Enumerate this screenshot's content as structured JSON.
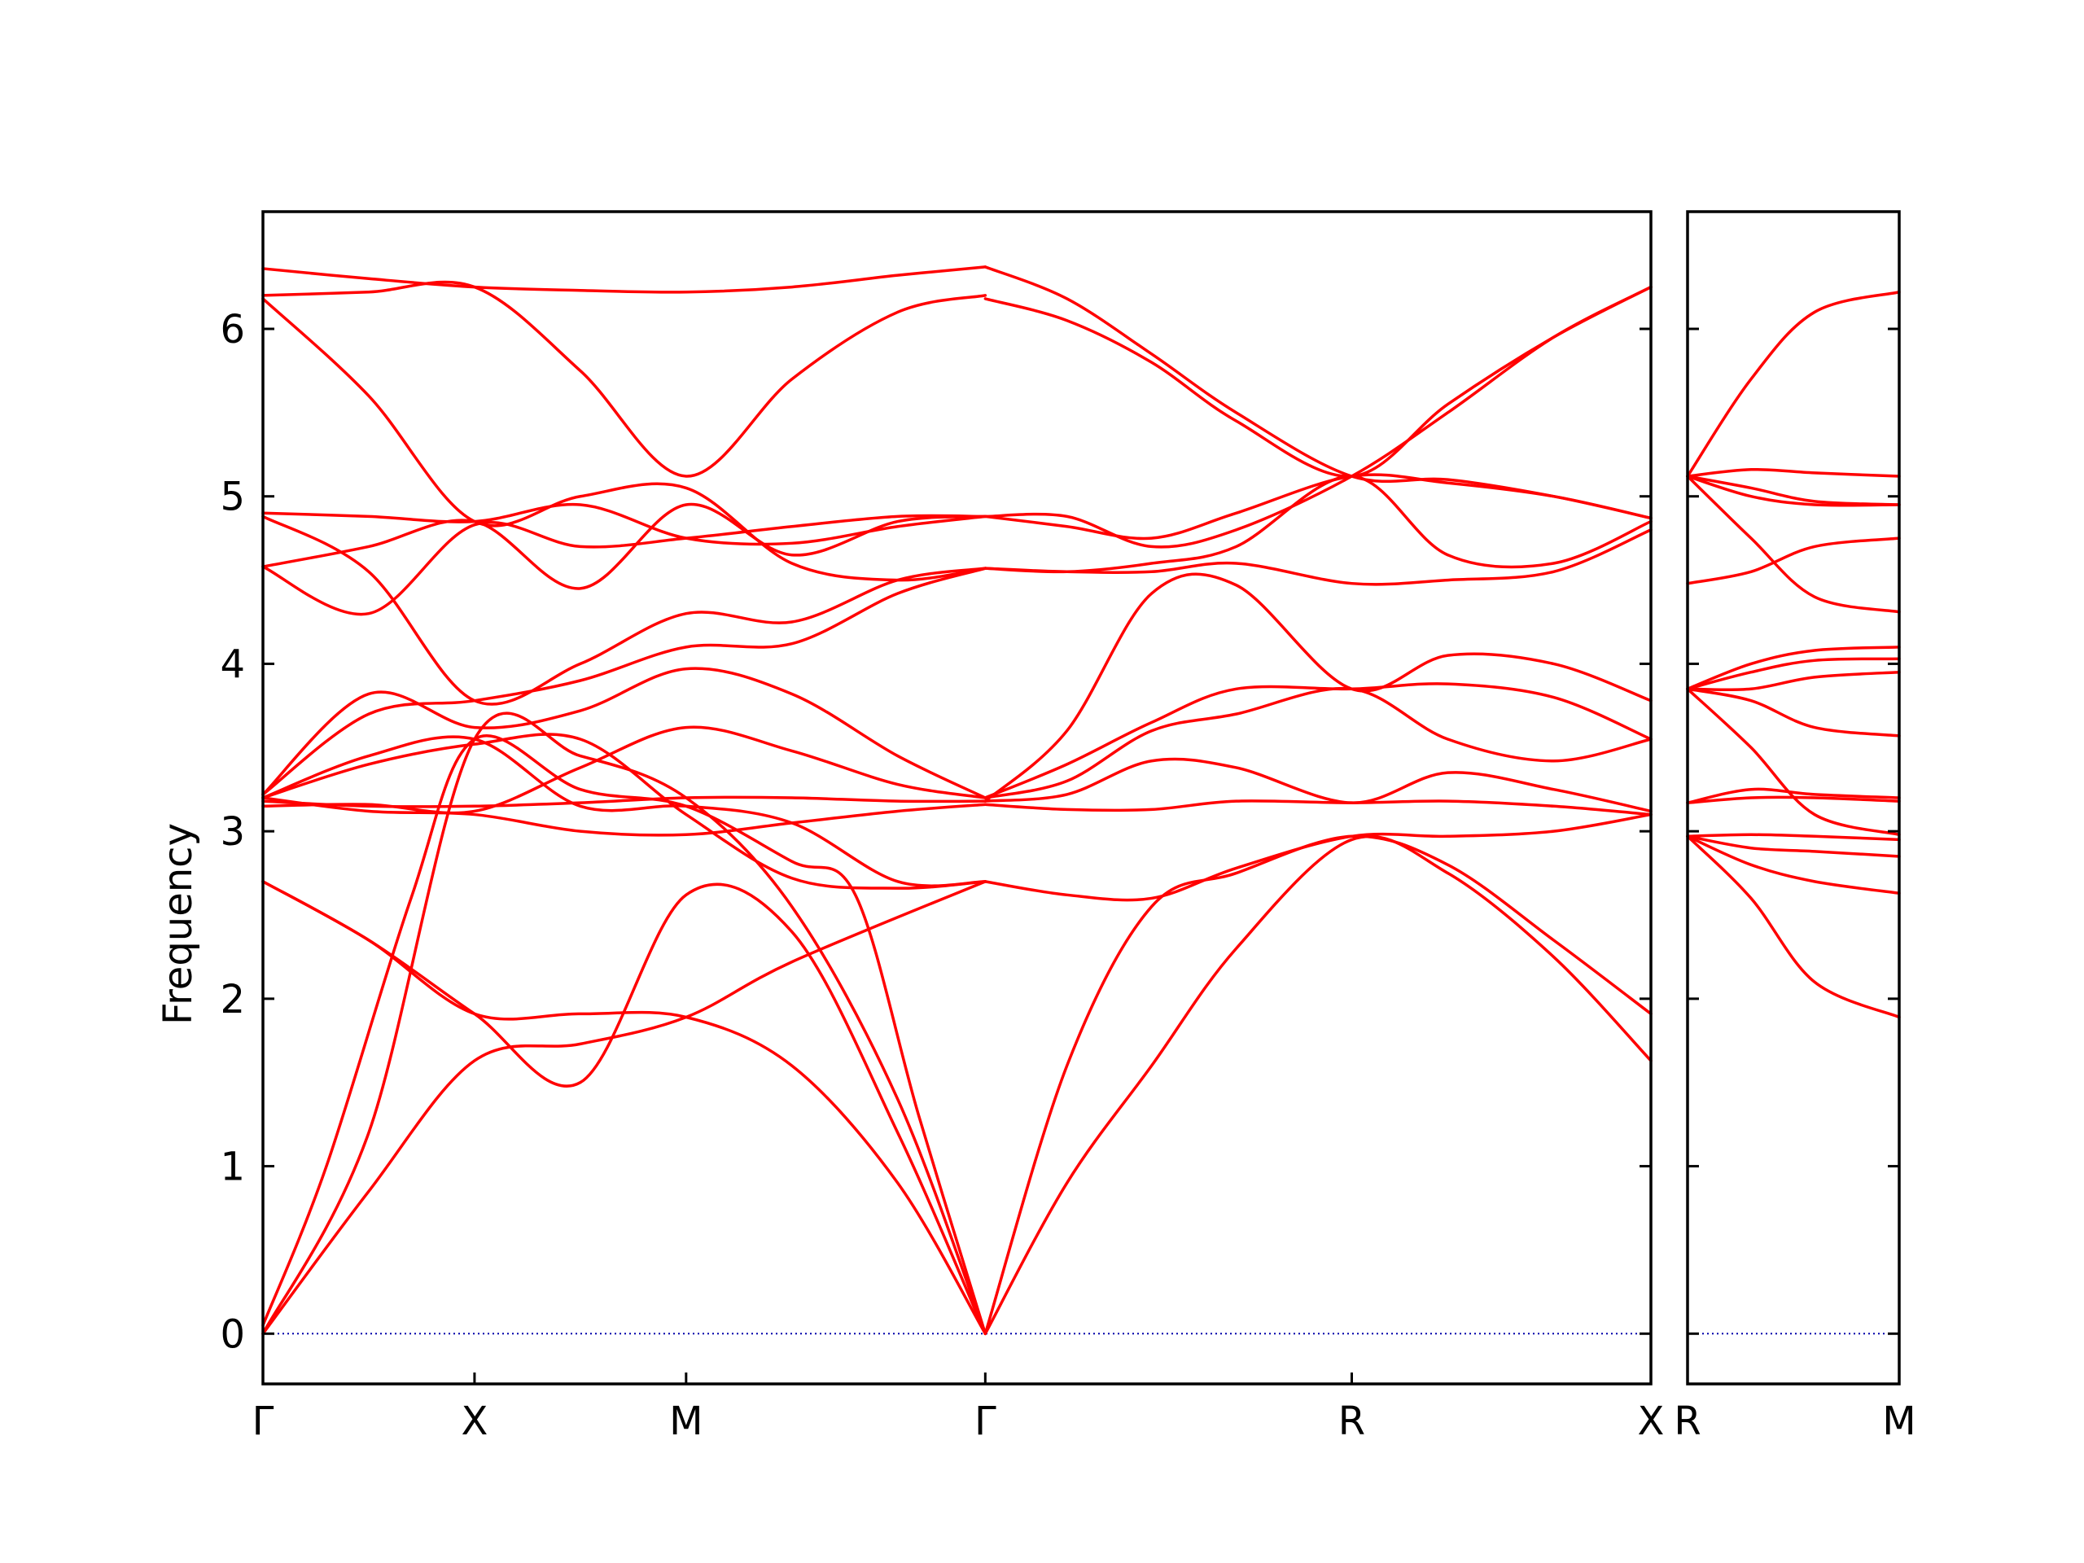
{
  "chart_data": {
    "type": "line",
    "title": "",
    "ylabel": "Frequency",
    "xlabel": "",
    "ylim": [
      -0.3,
      6.7
    ],
    "yticks": [
      0,
      1,
      2,
      3,
      4,
      5,
      6
    ],
    "grid": false,
    "colors": {
      "band": "#ff0000",
      "zero_line": "#0000aa"
    },
    "panels": [
      {
        "labels": [
          "Γ",
          "X",
          "M",
          "Γ",
          "R",
          "X"
        ],
        "ticks": [
          0,
          1,
          2,
          3.414,
          5.146,
          6.56
        ],
        "xlim": [
          0,
          6.56
        ],
        "series": [
          {
            "x": [
              0,
              0.5,
              1,
              1.5,
              2,
              2.5,
              3.414
            ],
            "y": [
              0,
              0.85,
              1.63,
              1.73,
              1.89,
              2.22,
              2.7
            ]
          },
          {
            "x": [
              0,
              0.5,
              1,
              1.5,
              2,
              2.5,
              3.0,
              3.414
            ],
            "y": [
              0,
              1.2,
              3.55,
              3.45,
              3.2,
              2.55,
              1.4,
              0
            ]
          },
          {
            "x": [
              0,
              0.3,
              0.7,
              1,
              1.5,
              2,
              2.5,
              2.8,
              3.1,
              3.414
            ],
            "y": [
              0.05,
              1.0,
              2.6,
              3.55,
              3.25,
              3.15,
              2.82,
              2.62,
              1.3,
              0
            ]
          },
          {
            "x": [
              0,
              0.5,
              1,
              1.5,
              2,
              2.5,
              3.0,
              3.414
            ],
            "y": [
              2.7,
              2.35,
              1.91,
              1.91,
              1.89,
              1.6,
              0.9,
              0
            ]
          },
          {
            "x": [
              0,
              0.5,
              1,
              1.5,
              2,
              2.5,
              3.0,
              3.414
            ],
            "y": [
              2.7,
              2.35,
              1.91,
              1.5,
              2.62,
              2.4,
              1.2,
              0
            ]
          },
          {
            "x": [
              0,
              0.5,
              1,
              1.5,
              2,
              2.5,
              3.0,
              3.414
            ],
            "y": [
              3.2,
              3.45,
              3.55,
              3.15,
              3.15,
              3.05,
              2.7,
              2.7
            ]
          },
          {
            "x": [
              0,
              0.5,
              1,
              1.5,
              2,
              2.5,
              3.0,
              3.414
            ],
            "y": [
              3.2,
              3.12,
              3.1,
              3.0,
              2.98,
              3.05,
              3.12,
              3.16
            ]
          },
          {
            "x": [
              0,
              0.5,
              1,
              1.5,
              2,
              2.5,
              3.0,
              3.414
            ],
            "y": [
              3.18,
              3.15,
              3.15,
              3.17,
              3.2,
              3.2,
              3.18,
              3.18
            ]
          },
          {
            "x": [
              0,
              0.5,
              1,
              1.5,
              2,
              2.5,
              3.0,
              3.414
            ],
            "y": [
              3.15,
              3.16,
              3.12,
              3.38,
              3.62,
              3.48,
              3.28,
              3.2
            ]
          },
          {
            "x": [
              0,
              0.5,
              1,
              1.5,
              2,
              2.5,
              3.0,
              3.414
            ],
            "y": [
              3.2,
              3.4,
              3.52,
              3.55,
              3.1,
              2.72,
              2.66,
              2.7
            ]
          },
          {
            "x": [
              0,
              0.5,
              1,
              1.5,
              2,
              2.5,
              3.0,
              3.414
            ],
            "y": [
              3.22,
              3.82,
              3.62,
              3.72,
              3.97,
              3.82,
              3.45,
              3.2
            ]
          },
          {
            "x": [
              0,
              0.5,
              1,
              1.5,
              2,
              2.5,
              3.0,
              3.414
            ],
            "y": [
              3.22,
              3.7,
              3.78,
              3.9,
              4.1,
              4.12,
              4.42,
              4.57
            ]
          },
          {
            "x": [
              0,
              0.5,
              1,
              1.5,
              2,
              2.5,
              3.0,
              3.414
            ],
            "y": [
              4.58,
              4.3,
              4.83,
              4.7,
              4.75,
              4.82,
              4.88,
              4.88
            ]
          },
          {
            "x": [
              0,
              0.5,
              1,
              1.5,
              2,
              2.5,
              3.0,
              3.414
            ],
            "y": [
              4.58,
              4.7,
              4.85,
              4.45,
              4.95,
              4.65,
              4.85,
              4.88
            ]
          },
          {
            "x": [
              0,
              0.5,
              1,
              1.5,
              2,
              2.5,
              3.0,
              3.414
            ],
            "y": [
              4.88,
              4.55,
              3.78,
              4.0,
              4.3,
              4.25,
              4.5,
              4.57
            ]
          },
          {
            "x": [
              0,
              0.5,
              1,
              1.5,
              2,
              2.5,
              3.0,
              3.414
            ],
            "y": [
              4.9,
              4.88,
              4.85,
              4.95,
              4.75,
              4.72,
              4.82,
              4.88
            ]
          },
          {
            "x": [
              0,
              0.5,
              1,
              1.5,
              2,
              2.5,
              3.0,
              3.414
            ],
            "y": [
              6.18,
              5.6,
              4.85,
              5.0,
              5.05,
              4.6,
              4.5,
              4.57
            ]
          },
          {
            "x": [
              0,
              0.5,
              1,
              1.5,
              2,
              2.5,
              3.0,
              3.414
            ],
            "y": [
              6.2,
              6.22,
              6.25,
              5.75,
              5.12,
              5.7,
              6.1,
              6.2
            ]
          },
          {
            "x": [
              0,
              0.5,
              1,
              1.5,
              2,
              2.5,
              3.0,
              3.414
            ],
            "y": [
              6.36,
              6.3,
              6.25,
              6.23,
              6.22,
              6.25,
              6.32,
              6.37
            ]
          },
          {
            "x": [
              3.414,
              3.8,
              4.2,
              4.6,
              5.146,
              5.6,
              6.1,
              6.56
            ],
            "y": [
              0,
              0.9,
              1.6,
              2.3,
              2.95,
              2.75,
              2.25,
              1.63
            ]
          },
          {
            "x": [
              3.414,
              3.8,
              4.2,
              4.6,
              5.146,
              5.6,
              6.1,
              6.56
            ],
            "y": [
              0,
              1.6,
              2.55,
              2.75,
              2.97,
              2.8,
              2.35,
              1.91
            ]
          },
          {
            "x": [
              3.414,
              3.8,
              4.2,
              4.6,
              5.146,
              5.6,
              6.1,
              6.56
            ],
            "y": [
              2.7,
              2.62,
              2.6,
              2.78,
              2.97,
              2.97,
              3.0,
              3.1
            ]
          },
          {
            "x": [
              3.414,
              3.8,
              4.2,
              4.6,
              5.146,
              5.6,
              6.1,
              6.56
            ],
            "y": [
              3.16,
              3.13,
              3.13,
              3.18,
              3.17,
              3.18,
              3.15,
              3.1
            ]
          },
          {
            "x": [
              3.414,
              3.8,
              4.2,
              4.6,
              5.146,
              5.6,
              6.1,
              6.56
            ],
            "y": [
              3.18,
              3.22,
              3.42,
              3.38,
              3.17,
              3.35,
              3.25,
              3.12
            ]
          },
          {
            "x": [
              3.414,
              3.8,
              4.2,
              4.6,
              5.146,
              5.6,
              6.1,
              6.56
            ],
            "y": [
              3.2,
              3.3,
              3.6,
              3.7,
              3.85,
              3.55,
              3.42,
              3.55
            ]
          },
          {
            "x": [
              3.414,
              3.8,
              4.2,
              4.6,
              5.146,
              5.6,
              6.1,
              6.56
            ],
            "y": [
              3.2,
              3.4,
              3.65,
              3.85,
              3.85,
              3.88,
              3.8,
              3.55
            ]
          },
          {
            "x": [
              3.414,
              3.8,
              4.2,
              4.6,
              5.146,
              5.6,
              6.1,
              6.56
            ],
            "y": [
              3.18,
              3.6,
              4.42,
              4.47,
              3.85,
              4.05,
              4.0,
              3.78
            ]
          },
          {
            "x": [
              3.414,
              3.8,
              4.2,
              4.6,
              5.146,
              5.6,
              6.1,
              6.56
            ],
            "y": [
              4.57,
              4.55,
              4.55,
              4.6,
              4.48,
              4.5,
              4.55,
              4.8
            ]
          },
          {
            "x": [
              3.414,
              3.8,
              4.2,
              4.6,
              5.146,
              5.6,
              6.1,
              6.56
            ],
            "y": [
              4.57,
              4.55,
              4.6,
              4.7,
              5.12,
              4.65,
              4.6,
              4.85
            ]
          },
          {
            "x": [
              3.414,
              3.8,
              4.2,
              4.6,
              5.146,
              5.6,
              6.1,
              6.56
            ],
            "y": [
              4.88,
              4.82,
              4.75,
              4.9,
              5.12,
              5.08,
              5.0,
              4.87
            ]
          },
          {
            "x": [
              3.414,
              3.8,
              4.2,
              4.6,
              5.146,
              5.6,
              6.1,
              6.56
            ],
            "y": [
              4.88,
              4.88,
              4.7,
              4.8,
              5.12,
              5.5,
              5.95,
              6.25
            ]
          },
          {
            "x": [
              3.414,
              3.8,
              4.2,
              4.6,
              5.146,
              5.6,
              6.1,
              6.56
            ],
            "y": [
              6.18,
              6.05,
              5.8,
              5.45,
              5.12,
              5.55,
              5.95,
              6.25
            ]
          },
          {
            "x": [
              3.414,
              3.8,
              4.2,
              4.6,
              5.146,
              5.6,
              6.1,
              6.56
            ],
            "y": [
              6.37,
              6.18,
              5.85,
              5.5,
              5.12,
              5.1,
              5.0,
              4.87
            ]
          }
        ]
      },
      {
        "labels": [
          "R",
          "M"
        ],
        "ticks": [
          0,
          1
        ],
        "xlim": [
          0,
          1
        ],
        "series": [
          {
            "x": [
              0,
              0.3,
              0.6,
              1
            ],
            "y": [
              2.97,
              2.6,
              2.1,
              1.89
            ]
          },
          {
            "x": [
              0,
              0.3,
              0.6,
              1
            ],
            "y": [
              2.97,
              2.8,
              2.7,
              2.63
            ]
          },
          {
            "x": [
              0,
              0.3,
              0.6,
              1
            ],
            "y": [
              2.97,
              2.9,
              2.88,
              2.85
            ]
          },
          {
            "x": [
              0,
              0.3,
              0.6,
              1
            ],
            "y": [
              2.97,
              2.98,
              2.97,
              2.95
            ]
          },
          {
            "x": [
              0,
              0.3,
              0.6,
              1
            ],
            "y": [
              3.17,
              3.2,
              3.2,
              3.18
            ]
          },
          {
            "x": [
              0,
              0.3,
              0.6,
              1
            ],
            "y": [
              3.17,
              3.25,
              3.22,
              3.2
            ]
          },
          {
            "x": [
              0,
              0.3,
              0.6,
              1
            ],
            "y": [
              3.85,
              3.5,
              3.1,
              2.98
            ]
          },
          {
            "x": [
              0,
              0.3,
              0.6,
              1
            ],
            "y": [
              3.85,
              3.78,
              3.62,
              3.57
            ]
          },
          {
            "x": [
              0,
              0.3,
              0.6,
              1
            ],
            "y": [
              3.85,
              3.85,
              3.92,
              3.95
            ]
          },
          {
            "x": [
              0,
              0.3,
              0.6,
              1
            ],
            "y": [
              3.85,
              3.95,
              4.02,
              4.03
            ]
          },
          {
            "x": [
              0,
              0.3,
              0.6,
              1
            ],
            "y": [
              3.85,
              4.0,
              4.08,
              4.1
            ]
          },
          {
            "x": [
              0,
              0.3,
              0.6,
              1
            ],
            "y": [
              4.48,
              4.55,
              4.7,
              4.75
            ]
          },
          {
            "x": [
              0,
              0.3,
              0.6,
              1
            ],
            "y": [
              5.12,
              4.75,
              4.4,
              4.31
            ]
          },
          {
            "x": [
              0,
              0.3,
              0.6,
              1
            ],
            "y": [
              5.12,
              5.0,
              4.95,
              4.95
            ]
          },
          {
            "x": [
              0,
              0.3,
              0.6,
              1
            ],
            "y": [
              5.12,
              5.05,
              4.97,
              4.95
            ]
          },
          {
            "x": [
              0,
              0.3,
              0.6,
              1
            ],
            "y": [
              5.12,
              5.16,
              5.14,
              5.12
            ]
          },
          {
            "x": [
              0,
              0.3,
              0.6,
              1
            ],
            "y": [
              5.12,
              5.7,
              6.1,
              6.22
            ]
          }
        ]
      }
    ]
  }
}
